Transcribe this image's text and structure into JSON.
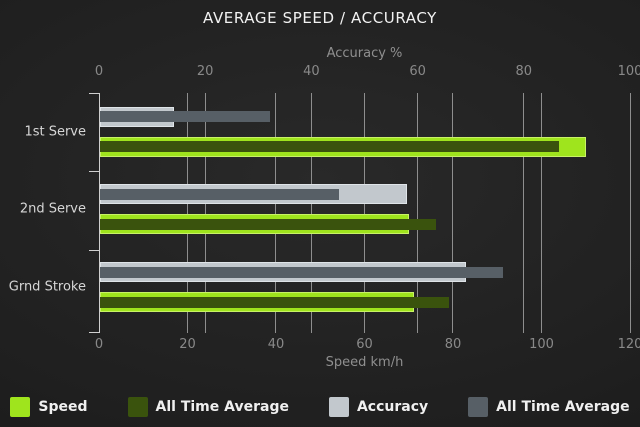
{
  "title": "AVERAGE SPEED / ACCURACY",
  "colors": {
    "speed": "#9fe41d",
    "speed_avg": "#3a530d",
    "accuracy": "#c2c8cd",
    "accuracy_avg": "#575f66",
    "grid": "#8e8e8e",
    "axis_line": "#cfcfcf",
    "background": "#1f1f1f",
    "title_text": "#f2f2f2",
    "axis_text": "#8f8f8f"
  },
  "chart_data": {
    "type": "bar",
    "orientation": "horizontal",
    "title": "AVERAGE SPEED / ACCURACY",
    "categories": [
      "1st Serve",
      "2nd Serve",
      "Grnd Stroke"
    ],
    "axes": {
      "top": {
        "label": "Accuracy %",
        "min": 0,
        "max": 100,
        "ticks": [
          0,
          20,
          40,
          60,
          80,
          100
        ]
      },
      "bottom": {
        "label": "Speed km/h",
        "min": 0,
        "max": 120,
        "ticks": [
          0,
          20,
          40,
          60,
          80,
          100,
          120
        ]
      }
    },
    "series": [
      {
        "name": "Speed",
        "pair": "speed",
        "role": "main",
        "axis": "bottom",
        "color_key": "speed",
        "values": [
          110,
          70,
          71
        ]
      },
      {
        "name": "All Time Average",
        "pair": "speed",
        "role": "average",
        "axis": "bottom",
        "color_key": "speed_avg",
        "values": [
          104,
          76,
          79
        ]
      },
      {
        "name": "Accuracy",
        "pair": "accuracy",
        "role": "main",
        "axis": "top",
        "color_key": "accuracy",
        "values": [
          14,
          58,
          69
        ]
      },
      {
        "name": "All Time Average",
        "pair": "accuracy",
        "role": "average",
        "axis": "top",
        "color_key": "accuracy_avg",
        "values": [
          32,
          45,
          76
        ]
      }
    ],
    "legend": [
      {
        "label": "Speed",
        "color_key": "speed"
      },
      {
        "label": "All Time Average",
        "color_key": "speed_avg"
      },
      {
        "label": "Accuracy",
        "color_key": "accuracy"
      },
      {
        "label": "All Time Average",
        "color_key": "accuracy_avg"
      }
    ],
    "grid": true,
    "legend_position": "bottom"
  }
}
